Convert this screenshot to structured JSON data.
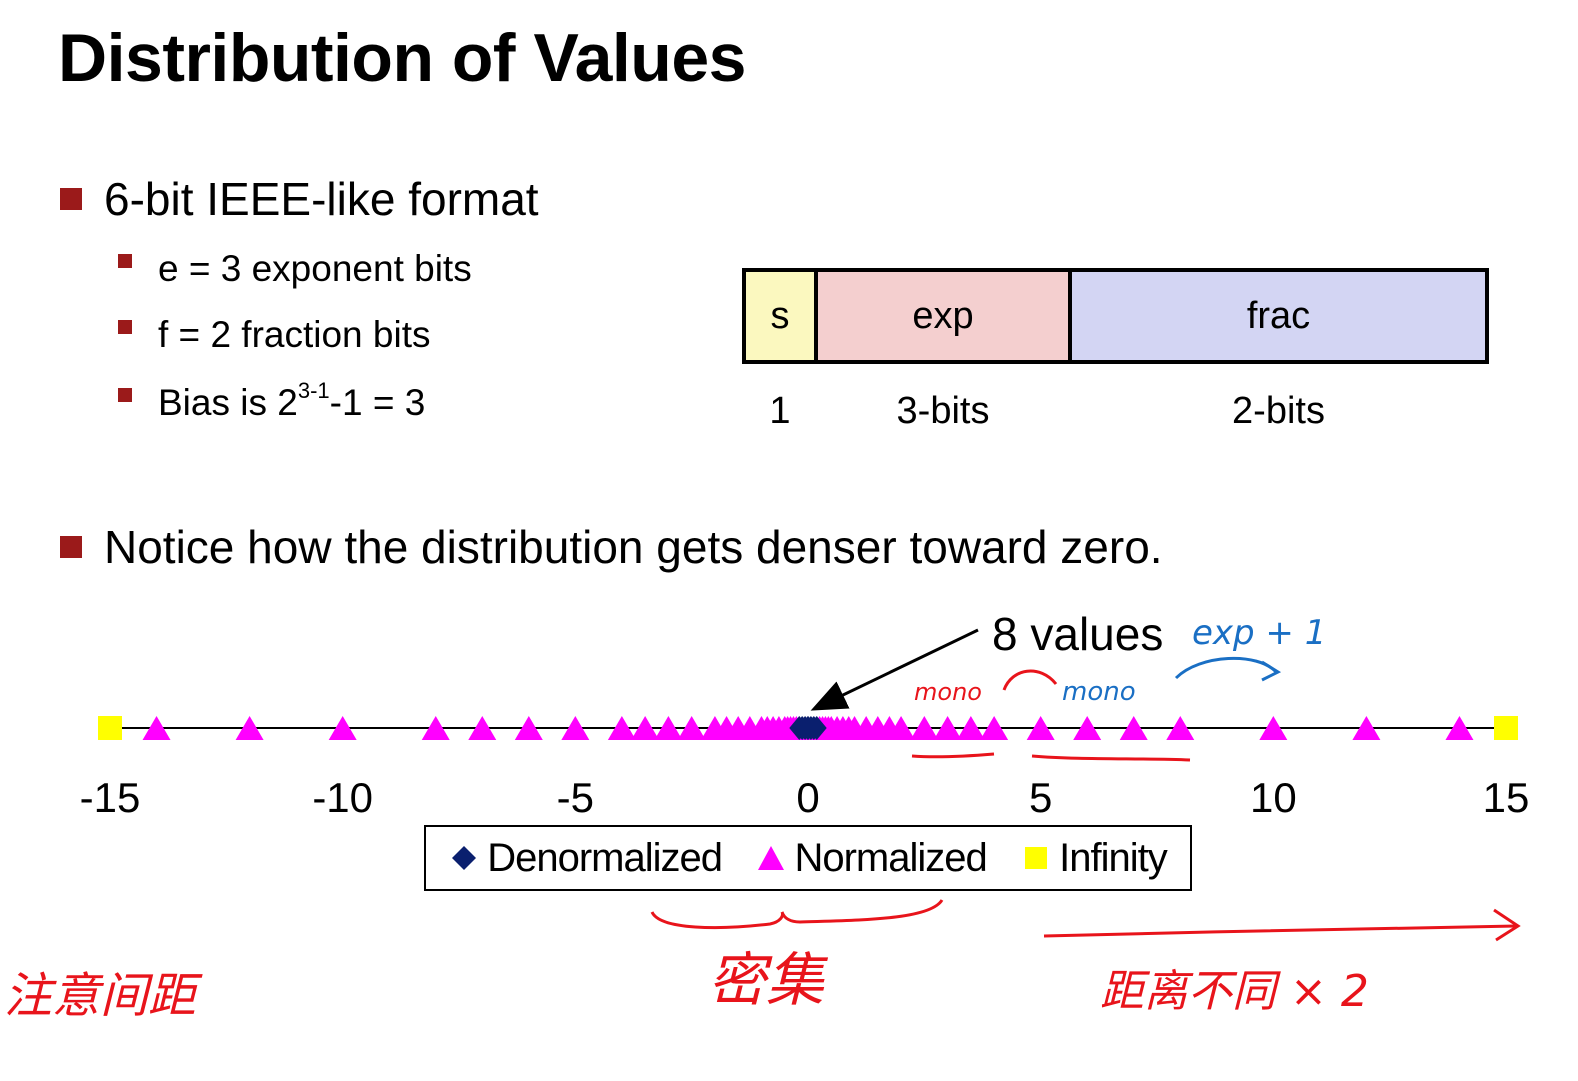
{
  "slide": {
    "title": "Distribution of Values",
    "bullets": {
      "b1": "6-bit IEEE-like format",
      "sub1": "e = 3 exponent bits",
      "sub2": "f = 2 fraction bits",
      "sub3_pre": "Bias is 2",
      "sub3_sup": "3-1",
      "sub3_post": "-1 = 3",
      "b2": "Notice how the distribution gets denser toward zero."
    },
    "format_fields": [
      {
        "label": "s",
        "size": "1",
        "color": "#fbf8bf"
      },
      {
        "label": "exp",
        "size": "3-bits",
        "color": "#f4cfcf"
      },
      {
        "label": "frac",
        "size": "2-bits",
        "color": "#d3d5f3"
      }
    ],
    "bullet_color": "#9b1a1a"
  },
  "chart_data": {
    "type": "scatter",
    "title": "",
    "xlabel": "",
    "ylabel": "",
    "xlim": [
      -15,
      15
    ],
    "xticks": [
      -15,
      -10,
      -5,
      0,
      5,
      10,
      15
    ],
    "grid": false,
    "legend_position": "bottom-center",
    "annotation": "8 values",
    "series": [
      {
        "name": "Denormalized",
        "marker": "diamond",
        "color": "#0a1f6e",
        "x": [
          -0.1875,
          -0.125,
          -0.0625,
          0,
          0,
          0.0625,
          0.125,
          0.1875
        ]
      },
      {
        "name": "Normalized",
        "marker": "triangle",
        "color": "#ff00ff",
        "x": [
          -14,
          -12,
          -10,
          -8,
          -7,
          -6,
          -5,
          -4,
          -3.5,
          -3,
          -2.5,
          -2,
          -1.75,
          -1.5,
          -1.25,
          -1,
          -0.875,
          -0.75,
          -0.625,
          -0.5,
          -0.4375,
          -0.375,
          -0.3125,
          -0.25,
          0.25,
          0.3125,
          0.375,
          0.4375,
          0.5,
          0.625,
          0.75,
          0.875,
          1,
          1.25,
          1.5,
          1.75,
          2,
          2.5,
          3,
          3.5,
          4,
          5,
          6,
          7,
          8,
          10,
          12,
          14
        ]
      },
      {
        "name": "Infinity",
        "marker": "square",
        "color": "#ffff00",
        "x": [
          -15,
          15
        ]
      }
    ]
  },
  "handwriting": {
    "note_exp": "exp + 1",
    "note_mono1": "mono",
    "note_mono2": "mono",
    "note_dense": "密集",
    "note_left": "注意间距",
    "note_right": "距离不同 × 2"
  },
  "ink_colors": {
    "red": "#e8141b",
    "blue": "#1a6fc4"
  }
}
